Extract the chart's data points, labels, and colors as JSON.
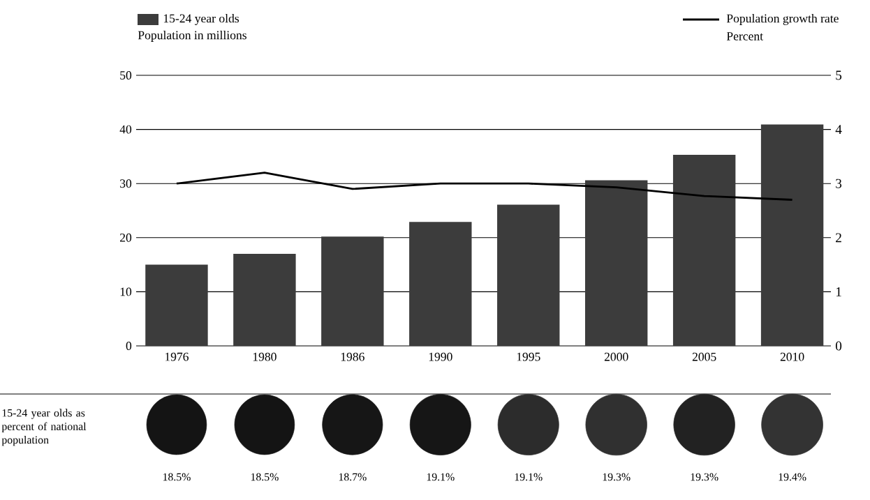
{
  "chart_data": [
    {
      "type": "bar",
      "categories": [
        "1976",
        "1980",
        "1986",
        "1990",
        "1995",
        "2000",
        "2005",
        "2010"
      ],
      "series": [
        {
          "name": "15-24 year olds",
          "color": "#3c3c3c",
          "values": [
            15,
            17,
            20.2,
            22.9,
            26.1,
            30.6,
            35.3,
            40.9
          ]
        },
        {
          "name": "Population growth rate",
          "type": "line",
          "axis": "y2",
          "color": "#000000",
          "values": [
            3.0,
            3.2,
            2.9,
            3.0,
            3.0,
            2.93,
            2.77,
            2.7
          ]
        }
      ],
      "ylabel": "Population in millions",
      "y2label": "Percent",
      "ylim": [
        0,
        50
      ],
      "yticks": [
        0,
        10,
        20,
        30,
        40,
        50
      ],
      "y2lim": [
        0,
        5
      ],
      "y2ticks": [
        0,
        1,
        2,
        3,
        4,
        5
      ],
      "grid": "y",
      "legend": "top"
    },
    {
      "type": "other",
      "title": "15-24 year olds as percent of national population",
      "categories": [
        null,
        null,
        null,
        null,
        null,
        null,
        null,
        null
      ],
      "values": [
        18.5,
        18.5,
        18.7,
        19.1,
        19.1,
        19.3,
        19.3,
        19.4
      ],
      "value_labels": [
        "18.5%",
        "18.5%",
        "18.7%",
        "19.1%",
        "19.1%",
        "19.3%",
        "19.3%",
        "19.4%"
      ],
      "colors": [
        "#141414",
        "#141414",
        "#161616",
        "#161616",
        "#2c2c2c",
        "#303030",
        "#222222",
        "#333333"
      ]
    }
  ]
}
